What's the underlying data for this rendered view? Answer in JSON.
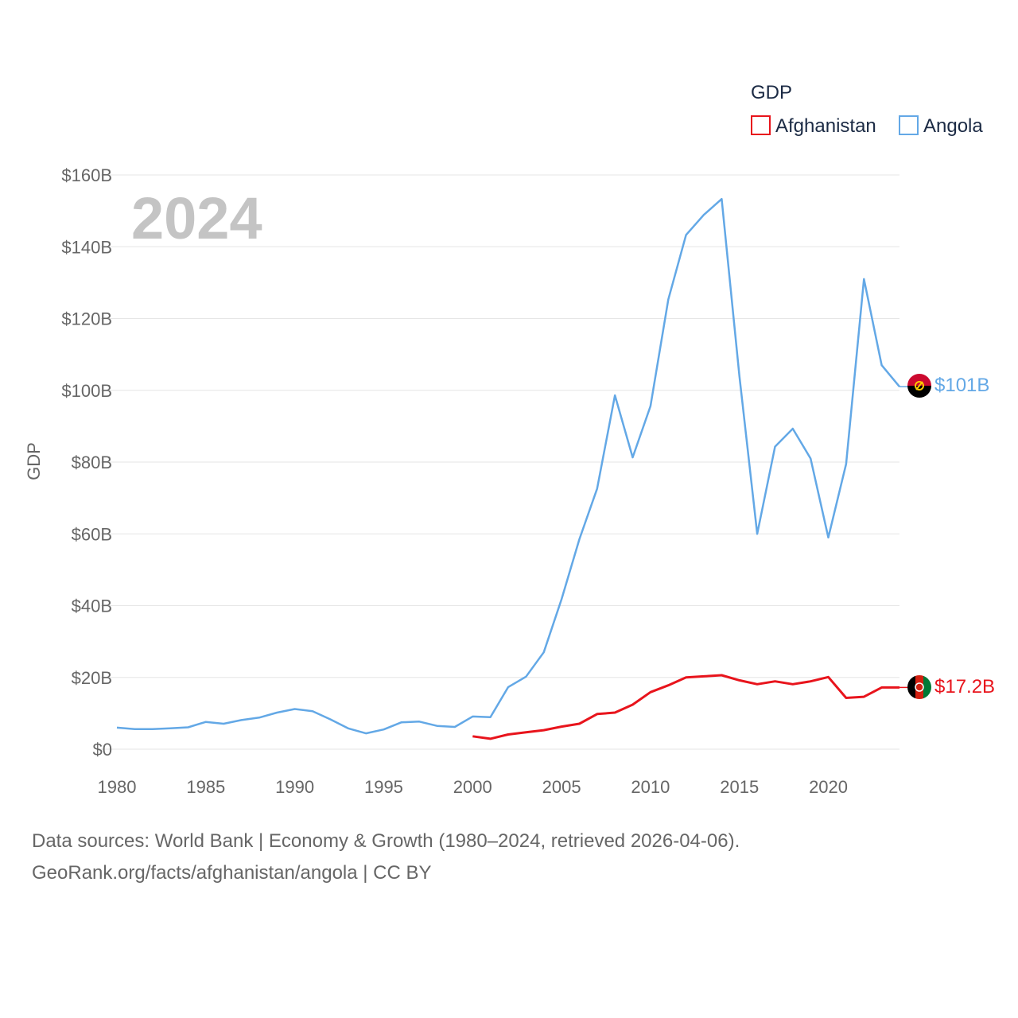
{
  "chart_data": {
    "type": "line",
    "legend_title": "GDP",
    "ylabel": "GDP",
    "year_label": "2024",
    "ylim": [
      0,
      160
    ],
    "xlim": [
      1980,
      2024
    ],
    "y_ticks": [
      {
        "value": 0,
        "label": "$0"
      },
      {
        "value": 20,
        "label": "$20B"
      },
      {
        "value": 40,
        "label": "$40B"
      },
      {
        "value": 60,
        "label": "$60B"
      },
      {
        "value": 80,
        "label": "$80B"
      },
      {
        "value": 100,
        "label": "$100B"
      },
      {
        "value": 120,
        "label": "$120B"
      },
      {
        "value": 140,
        "label": "$140B"
      },
      {
        "value": 160,
        "label": "$160B"
      }
    ],
    "x_ticks": [
      {
        "value": 1980,
        "label": "1980"
      },
      {
        "value": 1985,
        "label": "1985"
      },
      {
        "value": 1990,
        "label": "1990"
      },
      {
        "value": 1995,
        "label": "1995"
      },
      {
        "value": 2000,
        "label": "2000"
      },
      {
        "value": 2005,
        "label": "2005"
      },
      {
        "value": 2010,
        "label": "2010"
      },
      {
        "value": 2015,
        "label": "2015"
      },
      {
        "value": 2020,
        "label": "2020"
      }
    ],
    "series": [
      {
        "name": "Afghanistan",
        "color": "#e8141c",
        "end_label": "$17.2B",
        "x": [
          2000,
          2001,
          2002,
          2003,
          2004,
          2005,
          2006,
          2007,
          2008,
          2009,
          2010,
          2011,
          2012,
          2013,
          2014,
          2015,
          2016,
          2017,
          2018,
          2019,
          2020,
          2021,
          2022,
          2023,
          2024
        ],
        "values": [
          3.6,
          2.9,
          4.1,
          4.7,
          5.3,
          6.3,
          7.1,
          9.8,
          10.2,
          12.4,
          15.9,
          17.8,
          20.0,
          20.3,
          20.6,
          19.2,
          18.1,
          18.9,
          18.1,
          18.9,
          20.1,
          14.3,
          14.6,
          17.2,
          17.2
        ]
      },
      {
        "name": "Angola",
        "color": "#63a8e6",
        "end_label": "$101B",
        "x": [
          1980,
          1981,
          1982,
          1983,
          1984,
          1985,
          1986,
          1987,
          1988,
          1989,
          1990,
          1991,
          1992,
          1993,
          1994,
          1995,
          1996,
          1997,
          1998,
          1999,
          2000,
          2001,
          2002,
          2003,
          2004,
          2005,
          2006,
          2007,
          2008,
          2009,
          2010,
          2011,
          2012,
          2013,
          2014,
          2015,
          2016,
          2017,
          2018,
          2019,
          2020,
          2021,
          2022,
          2023,
          2024
        ],
        "values": [
          6.0,
          5.6,
          5.6,
          5.8,
          6.1,
          7.6,
          7.1,
          8.1,
          8.8,
          10.2,
          11.2,
          10.6,
          8.3,
          5.8,
          4.4,
          5.5,
          7.5,
          7.7,
          6.5,
          6.2,
          9.1,
          8.9,
          17.3,
          20.2,
          27.0,
          41.8,
          58.5,
          72.6,
          98.6,
          81.3,
          95.6,
          125.3,
          143.3,
          148.9,
          153.3,
          104.0,
          60.0,
          84.3,
          89.3,
          81.0,
          59.0,
          79.5,
          131.0,
          107.0,
          101.0
        ]
      }
    ]
  },
  "footer": {
    "sources": "Data sources: World Bank | Economy & Growth (1980–2024, retrieved 2026-04-06).",
    "credit": "GeoRank.org/facts/afghanistan/angola | CC BY"
  }
}
